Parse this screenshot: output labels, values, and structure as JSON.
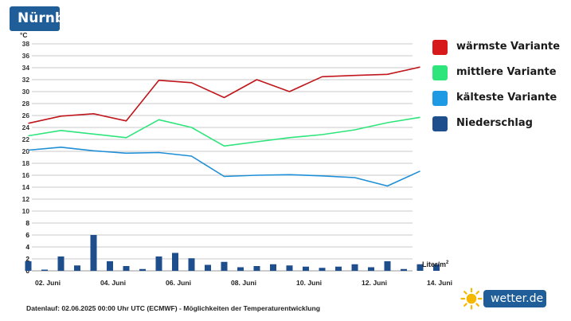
{
  "header": {
    "title": "Nürnberg"
  },
  "legend": [
    {
      "label": "wärmste Variante",
      "color": "#d7191c"
    },
    {
      "label": "mittlere Variante",
      "color": "#2ee57c"
    },
    {
      "label": "kälteste Variante",
      "color": "#1e9ae5"
    },
    {
      "label": "Niederschlag",
      "color": "#1f4e8c"
    }
  ],
  "footer": {
    "text": "Datenlauf: 02.06.2025 00:00 Uhr UTC (ECMWF) - Möglichkeiten der Temperaturentwicklung"
  },
  "precip_unit": {
    "base": "Liter/m",
    "sup": "2"
  },
  "brand": {
    "name": "wetter.de",
    "icon": "sun-icon"
  },
  "chart_data": {
    "type": "line",
    "temperature_axis": {
      "unit": "°C",
      "ylim": [
        0,
        38
      ],
      "ticks": [
        0,
        2,
        4,
        6,
        8,
        10,
        12,
        14,
        16,
        18,
        20,
        22,
        24,
        26,
        28,
        30,
        32,
        34,
        36,
        38
      ]
    },
    "precip_axis": {
      "ylim": [
        0,
        8
      ],
      "ticks": [
        0,
        2,
        4,
        6,
        8
      ]
    },
    "x_ticks": [
      "02. Juni",
      "04. Juni",
      "06. Juni",
      "08. Juni",
      "10. Juni",
      "12. Juni",
      "14. Juni"
    ],
    "series": [
      {
        "name": "wärmste Variante",
        "color": "#c0161c",
        "values": [
          {
            "x": "2025-06-01 12:00",
            "y": 24.7
          },
          {
            "x": "2025-06-02 12:00",
            "y": 25.9
          },
          {
            "x": "2025-06-03 12:00",
            "y": 26.3
          },
          {
            "x": "2025-06-04 12:00",
            "y": 25.1
          },
          {
            "x": "2025-06-05 12:00",
            "y": 31.9
          },
          {
            "x": "2025-06-06 12:00",
            "y": 31.5
          },
          {
            "x": "2025-06-07 12:00",
            "y": 29.0
          },
          {
            "x": "2025-06-08 12:00",
            "y": 32.0
          },
          {
            "x": "2025-06-09 12:00",
            "y": 30.0
          },
          {
            "x": "2025-06-10 12:00",
            "y": 32.5
          },
          {
            "x": "2025-06-11 12:00",
            "y": 32.7
          },
          {
            "x": "2025-06-12 12:00",
            "y": 32.9
          },
          {
            "x": "2025-06-13 12:00",
            "y": 34.1
          }
        ]
      },
      {
        "name": "mittlere Variante",
        "color": "#2ee57c",
        "values": [
          {
            "x": "2025-06-01 12:00",
            "y": 22.6
          },
          {
            "x": "2025-06-02 12:00",
            "y": 23.5
          },
          {
            "x": "2025-06-03 12:00",
            "y": 22.9
          },
          {
            "x": "2025-06-04 12:00",
            "y": 22.3
          },
          {
            "x": "2025-06-05 12:00",
            "y": 25.3
          },
          {
            "x": "2025-06-06 12:00",
            "y": 24.0
          },
          {
            "x": "2025-06-07 12:00",
            "y": 20.9
          },
          {
            "x": "2025-06-08 12:00",
            "y": 21.6
          },
          {
            "x": "2025-06-09 12:00",
            "y": 22.3
          },
          {
            "x": "2025-06-10 12:00",
            "y": 22.8
          },
          {
            "x": "2025-06-11 12:00",
            "y": 23.6
          },
          {
            "x": "2025-06-12 12:00",
            "y": 24.8
          },
          {
            "x": "2025-06-13 12:00",
            "y": 25.7
          }
        ]
      },
      {
        "name": "kälteste Variante",
        "color": "#1e8fd6",
        "values": [
          {
            "x": "2025-06-01 12:00",
            "y": 20.2
          },
          {
            "x": "2025-06-02 12:00",
            "y": 20.7
          },
          {
            "x": "2025-06-03 12:00",
            "y": 20.1
          },
          {
            "x": "2025-06-04 12:00",
            "y": 19.7
          },
          {
            "x": "2025-06-05 12:00",
            "y": 19.8
          },
          {
            "x": "2025-06-06 12:00",
            "y": 19.2
          },
          {
            "x": "2025-06-07 12:00",
            "y": 15.8
          },
          {
            "x": "2025-06-08 12:00",
            "y": 16.0
          },
          {
            "x": "2025-06-09 12:00",
            "y": 16.1
          },
          {
            "x": "2025-06-10 12:00",
            "y": 15.9
          },
          {
            "x": "2025-06-11 12:00",
            "y": 15.6
          },
          {
            "x": "2025-06-12 12:00",
            "y": 14.2
          },
          {
            "x": "2025-06-13 12:00",
            "y": 16.7
          }
        ]
      }
    ],
    "bars": {
      "name": "Niederschlag",
      "color": "#1f4e8c",
      "values": [
        {
          "x": "2025-06-01 12:00",
          "y": 1.6
        },
        {
          "x": "2025-06-02 00:00",
          "y": 0.2
        },
        {
          "x": "2025-06-02 12:00",
          "y": 2.4
        },
        {
          "x": "2025-06-03 00:00",
          "y": 0.9
        },
        {
          "x": "2025-06-03 12:00",
          "y": 6.0
        },
        {
          "x": "2025-06-04 00:00",
          "y": 1.6
        },
        {
          "x": "2025-06-04 12:00",
          "y": 0.8
        },
        {
          "x": "2025-06-05 00:00",
          "y": 0.3
        },
        {
          "x": "2025-06-05 12:00",
          "y": 2.4
        },
        {
          "x": "2025-06-06 00:00",
          "y": 3.0
        },
        {
          "x": "2025-06-06 12:00",
          "y": 2.1
        },
        {
          "x": "2025-06-07 00:00",
          "y": 1.0
        },
        {
          "x": "2025-06-07 12:00",
          "y": 1.5
        },
        {
          "x": "2025-06-08 00:00",
          "y": 0.6
        },
        {
          "x": "2025-06-08 12:00",
          "y": 0.8
        },
        {
          "x": "2025-06-09 00:00",
          "y": 1.1
        },
        {
          "x": "2025-06-09 12:00",
          "y": 0.9
        },
        {
          "x": "2025-06-10 00:00",
          "y": 0.7
        },
        {
          "x": "2025-06-10 12:00",
          "y": 0.5
        },
        {
          "x": "2025-06-11 00:00",
          "y": 0.7
        },
        {
          "x": "2025-06-11 12:00",
          "y": 1.1
        },
        {
          "x": "2025-06-12 00:00",
          "y": 0.6
        },
        {
          "x": "2025-06-12 12:00",
          "y": 1.6
        },
        {
          "x": "2025-06-13 00:00",
          "y": 0.3
        },
        {
          "x": "2025-06-13 12:00",
          "y": 1.1
        },
        {
          "x": "2025-06-14 00:00",
          "y": 1.1
        }
      ]
    },
    "grid": true,
    "legend_position": "right"
  }
}
